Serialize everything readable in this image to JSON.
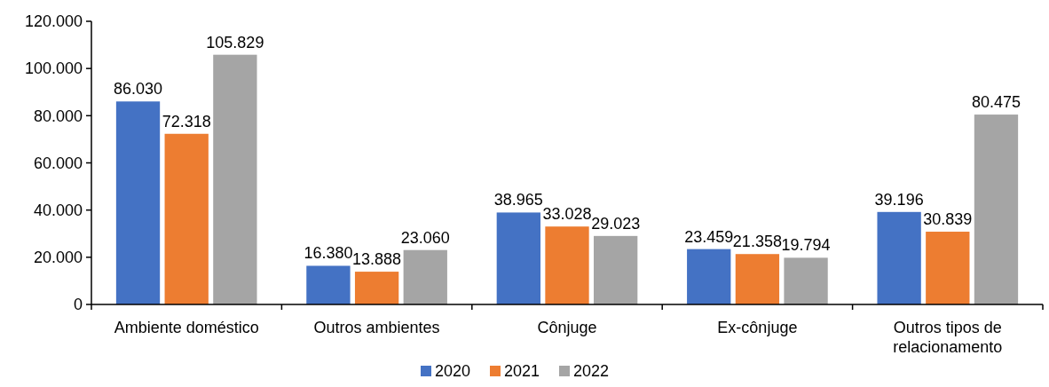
{
  "chart_data": {
    "type": "bar",
    "categories": [
      "Ambiente doméstico",
      "Outros ambientes",
      "Cônjuge",
      "Ex-cônjuge",
      "Outros tipos de relacionamento"
    ],
    "series": [
      {
        "name": "2020",
        "color": "#4472c4",
        "values": [
          86030,
          16380,
          38965,
          23459,
          39196
        ],
        "value_labels": [
          "86.030",
          "16.380",
          "38.965",
          "23.459",
          "39.196"
        ]
      },
      {
        "name": "2021",
        "color": "#ed7d31",
        "values": [
          72318,
          13888,
          33028,
          21358,
          30839
        ],
        "value_labels": [
          "72.318",
          "13.888",
          "33.028",
          "21.358",
          "30.839"
        ]
      },
      {
        "name": "2022",
        "color": "#a5a5a5",
        "values": [
          105829,
          23060,
          29023,
          19794,
          80475
        ],
        "value_labels": [
          "105.829",
          "23.060",
          "29.023",
          "19.794",
          "80.475"
        ]
      }
    ],
    "ylim": [
      0,
      120000
    ],
    "yticks": [
      0,
      {
        "value": 20000,
        "label": "20.000"
      },
      {
        "value": 40000,
        "label": "40.000"
      },
      {
        "value": 60000,
        "label": "60.000"
      },
      {
        "value": 80000,
        "label": "80.000"
      },
      {
        "value": 100000,
        "label": "100.000"
      },
      {
        "value": 120000,
        "label": "120.000"
      }
    ],
    "grid": false,
    "legend": "bottom"
  }
}
